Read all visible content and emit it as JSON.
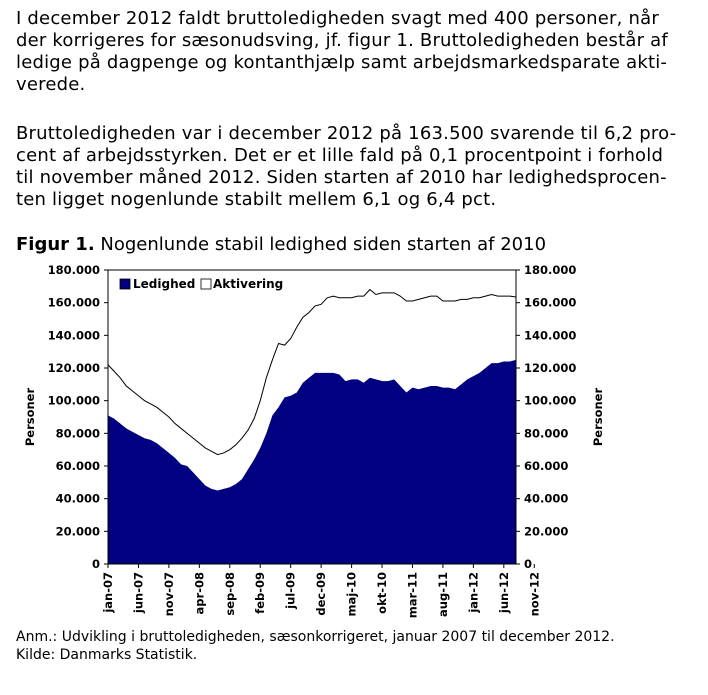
{
  "text": {
    "paragraph1": [
      "I december 2012 faldt bruttoledigheden svagt med 400 personer, når",
      "der korrigeres for sæsonudsving, jf. figur 1. Bruttoledigheden består af",
      "ledige på dagpenge og kontanthjælp samt arbejdsmarkedsparate akti-",
      "verede."
    ],
    "paragraph2": [
      "Bruttoledigheden var i december 2012 på 163.500 svarende til 6,2 pro-",
      "cent af arbejdsstyrken. Det er et lille fald på 0,1 procentpoint i forhold",
      "til november måned 2012. Siden starten af 2010 har ledighedsprocen-",
      "ten ligget nogenlunde stabilt mellem 6,1 og 6,4 pct."
    ],
    "figure_label": "Figur 1.",
    "figure_title": " Nogenlunde stabil ledighed siden starten af 2010",
    "note": "Anm.: Udvikling i bruttoledigheden, sæsonkorrigeret, januar 2007 til december 2012.",
    "source": "Kilde: Danmarks Statistik."
  },
  "colors": {
    "ledighed": "#000080",
    "aktivering_line": "#000000",
    "background": "#ffffff"
  },
  "chart_data": {
    "type": "area",
    "ylabel_left": "Personer",
    "ylabel_right": "Personer",
    "ylim": [
      0,
      180000
    ],
    "y_ticks": [
      "0",
      "20.000",
      "40.000",
      "60.000",
      "80.000",
      "100.000",
      "120.000",
      "140.000",
      "160.000",
      "180.000"
    ],
    "y_tick_values": [
      0,
      20000,
      40000,
      60000,
      80000,
      100000,
      120000,
      140000,
      160000,
      180000
    ],
    "x_tick_labels": [
      "jan-07",
      "jun-07",
      "nov-07",
      "apr-08",
      "sep-08",
      "feb-09",
      "jul-09",
      "dec-09",
      "maj-10",
      "okt-10",
      "mar-11",
      "aug-11",
      "jan-12",
      "jun-12",
      "nov-12"
    ],
    "legend": [
      "Ledighed",
      "Aktivering"
    ],
    "legend_position": "top-left",
    "stacking": "stacked",
    "x_start": "2007-01",
    "x_end": "2012-12",
    "series": [
      {
        "name": "Ledighed",
        "values": [
          91000,
          89000,
          86000,
          83000,
          81000,
          79000,
          77000,
          76000,
          74000,
          71000,
          68000,
          65000,
          61000,
          60000,
          56000,
          52000,
          48000,
          46000,
          45000,
          46000,
          47000,
          49000,
          52000,
          58000,
          64000,
          71000,
          80000,
          91000,
          96000,
          102000,
          103000,
          105000,
          111000,
          114000,
          117000,
          117000,
          117000,
          117000,
          116000,
          112000,
          113000,
          113000,
          111000,
          114000,
          113000,
          112000,
          112000,
          113000,
          109000,
          105000,
          108000,
          107000,
          108000,
          109000,
          109000,
          108000,
          108000,
          107000,
          110000,
          113000,
          115000,
          117000,
          120000,
          123000,
          123000,
          124000,
          124000,
          125000
        ]
      },
      {
        "name": "Aktivering",
        "values": [
          31000,
          29000,
          28000,
          26000,
          25000,
          24000,
          23000,
          22000,
          22000,
          22000,
          22000,
          21000,
          22000,
          20000,
          21000,
          22000,
          23000,
          23000,
          22000,
          22000,
          23000,
          24000,
          25000,
          24000,
          25000,
          29000,
          34000,
          34000,
          39000,
          32000,
          35000,
          40000,
          40000,
          40000,
          41000,
          42000,
          46000,
          47000,
          47000,
          51000,
          50000,
          51000,
          53000,
          54000,
          52000,
          54000,
          54000,
          53000,
          55000,
          56000,
          53000,
          55000,
          55000,
          55000,
          55000,
          53000,
          53000,
          54000,
          52000,
          49000,
          48000,
          46000,
          44000,
          42000,
          41000,
          40000,
          40000,
          38500
        ]
      }
    ]
  }
}
